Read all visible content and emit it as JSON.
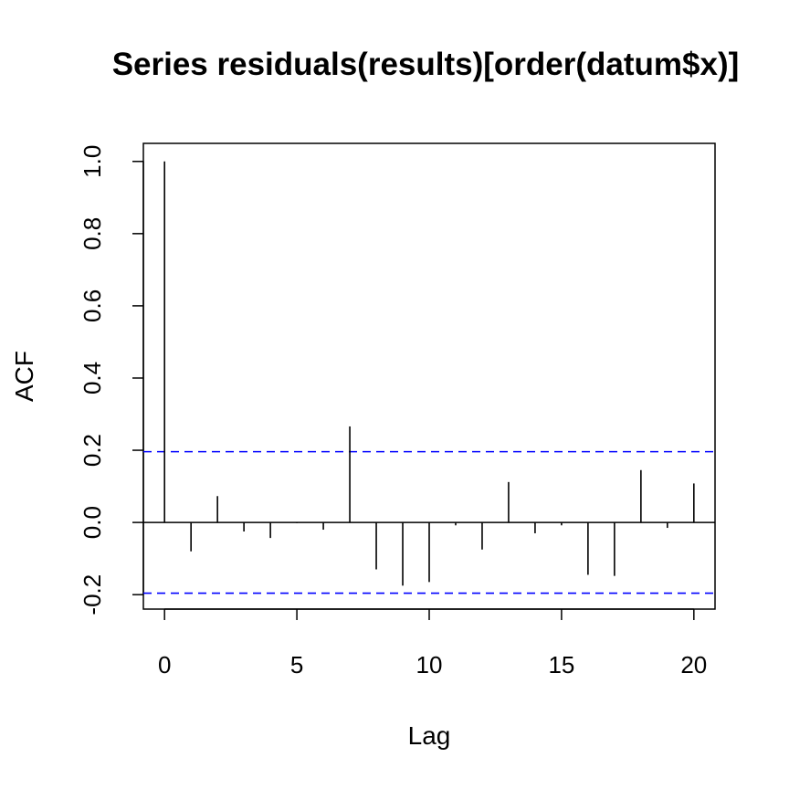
{
  "chart_data": {
    "type": "bar",
    "title": "Series  residuals(results)[order(datum$x)]",
    "xlabel": "Lag",
    "ylabel": "ACF",
    "xlim": [
      -0.8,
      20.8
    ],
    "ylim": [
      -0.24,
      1.05
    ],
    "x_ticks": [
      0,
      5,
      10,
      15,
      20
    ],
    "y_ticks": [
      -0.2,
      0.0,
      0.2,
      0.4,
      0.6,
      0.8,
      1.0
    ],
    "x_tick_labels": [
      "0",
      "5",
      "10",
      "15",
      "20"
    ],
    "y_tick_labels": [
      "-0.2",
      "0.0",
      "0.2",
      "0.4",
      "0.6",
      "0.8",
      "1.0"
    ],
    "lags": [
      0,
      1,
      2,
      3,
      4,
      5,
      6,
      7,
      8,
      9,
      10,
      11,
      12,
      13,
      14,
      15,
      16,
      17,
      18,
      19,
      20
    ],
    "acf": [
      1.0,
      -0.08,
      0.073,
      -0.025,
      -0.043,
      -0.002,
      -0.02,
      0.266,
      -0.13,
      -0.175,
      -0.165,
      -0.008,
      -0.075,
      0.112,
      -0.03,
      -0.008,
      -0.145,
      -0.148,
      0.145,
      -0.015,
      0.108
    ],
    "confidence_bounds": [
      0.196,
      -0.196
    ],
    "bound_color": "#0000ff",
    "bar_color": "#000000",
    "grid": false
  }
}
